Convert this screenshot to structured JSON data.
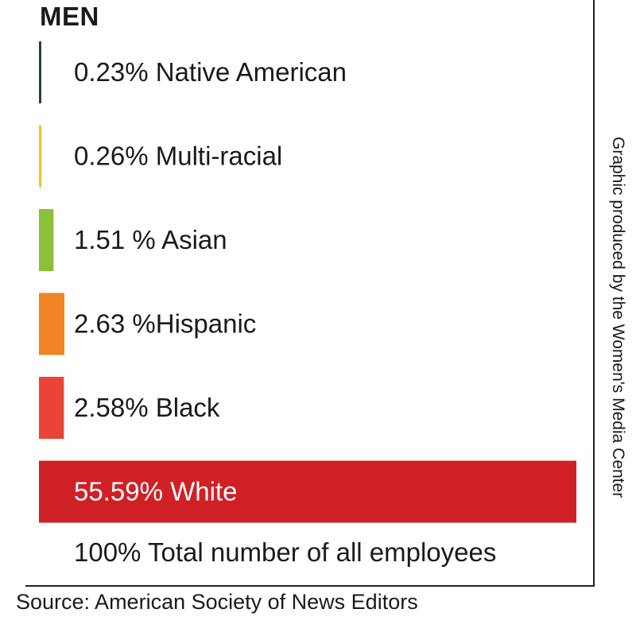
{
  "section_title": "MEN",
  "chart_data": {
    "type": "bar",
    "orientation": "horizontal",
    "title": "MEN",
    "categories": [
      "Native American",
      "Multi-racial",
      "Asian",
      "Hispanic",
      "Black",
      "White"
    ],
    "values": [
      0.23,
      0.26,
      1.51,
      2.63,
      2.58,
      55.59
    ],
    "labels": [
      "0.23% Native American",
      "0.26% Multi-racial",
      "1.51 % Asian",
      "2.63 %Hispanic",
      "2.58% Black",
      "55.59% White"
    ],
    "colors": [
      "#1d4a22",
      "#f0c420",
      "#8cbf3a",
      "#f08324",
      "#ea4439",
      "#cf2026"
    ],
    "label_colors": [
      "#1a1a1a",
      "#1a1a1a",
      "#1a1a1a",
      "#1a1a1a",
      "#1a1a1a",
      "#ffffff"
    ],
    "unit": "%",
    "xlim": [
      0,
      55.59
    ]
  },
  "total_label": "100% Total number of all employees",
  "credit": "Graphic produced by the Women's Media Center",
  "source": "Source: American Society of News Editors"
}
